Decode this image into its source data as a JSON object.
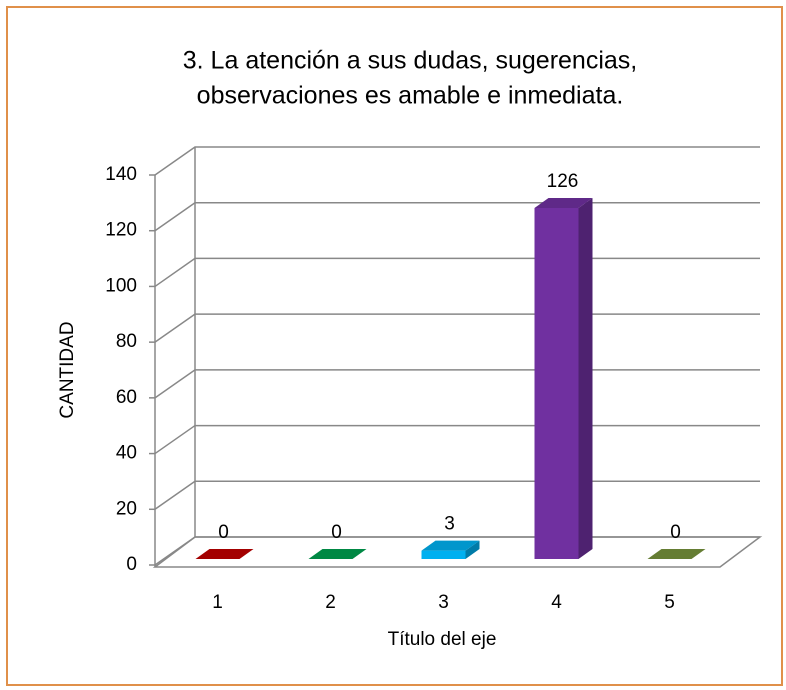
{
  "chart_data": {
    "type": "bar3d",
    "title": [
      "3. La atención a sus dudas, sugerencias,",
      "observaciones es amable e  inmediata."
    ],
    "categories": [
      "1",
      "2",
      "3",
      "4",
      "5"
    ],
    "values": [
      0,
      0,
      3,
      126,
      0
    ],
    "colors": [
      "#c00000",
      "#00a050",
      "#00b0f0",
      "#7030a0",
      "#77933c"
    ],
    "x_label": "Título del eje",
    "y_label": "CANTIDAD",
    "ylim": [
      0,
      140
    ],
    "yticks": [
      0,
      20,
      40,
      60,
      80,
      100,
      120,
      140
    ],
    "grid": true
  }
}
